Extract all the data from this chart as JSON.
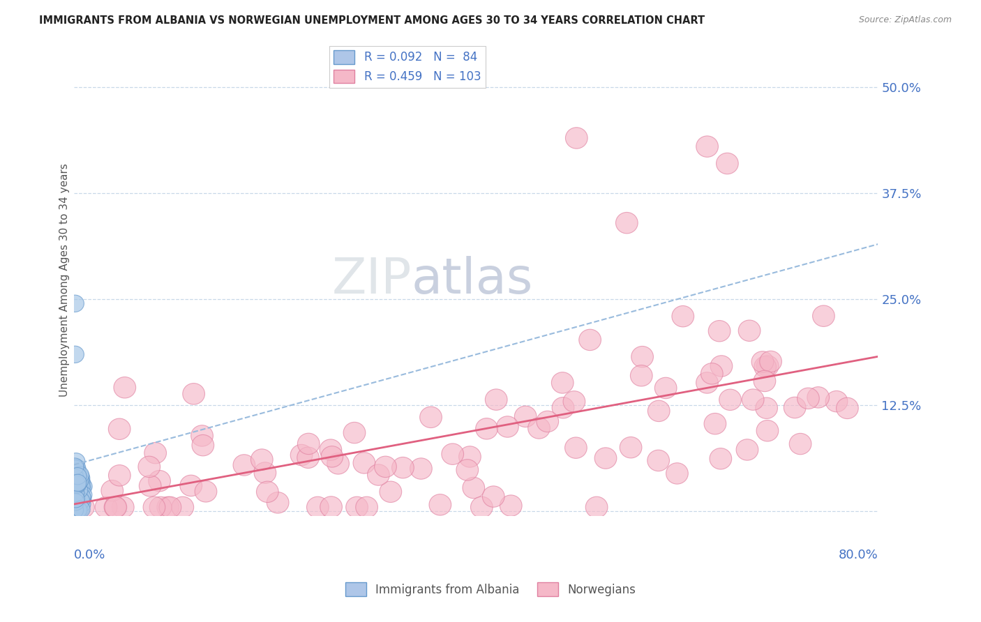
{
  "title": "IMMIGRANTS FROM ALBANIA VS NORWEGIAN UNEMPLOYMENT AMONG AGES 30 TO 34 YEARS CORRELATION CHART",
  "source": "Source: ZipAtlas.com",
  "ylabel": "Unemployment Among Ages 30 to 34 years",
  "xlim": [
    0.0,
    0.8
  ],
  "ylim": [
    -0.005,
    0.55
  ],
  "ytick_vals": [
    0.0,
    0.125,
    0.25,
    0.375,
    0.5
  ],
  "ytick_labels": [
    "",
    "12.5%",
    "25.0%",
    "37.5%",
    "50.0%"
  ],
  "scatter1_facecolor": "#a8c8e8",
  "scatter1_edgecolor": "#6699cc",
  "scatter2_facecolor": "#f5b8c8",
  "scatter2_edgecolor": "#e080a0",
  "trendline1_color": "#99bbdd",
  "trendline2_color": "#e06080",
  "watermark_color": "#d8dfe8",
  "background_color": "#ffffff",
  "legend1_facecolor": "#aec6e8",
  "legend1_edgecolor": "#6699cc",
  "legend2_facecolor": "#f5b8c8",
  "legend2_edgecolor": "#e080a0",
  "legend_text_color": "#4472c4",
  "axis_label_color": "#4472c4",
  "title_color": "#222222",
  "source_color": "#888888",
  "ylabel_color": "#555555",
  "grid_color": "#c8d8e8",
  "bottom_legend_color": "#555555"
}
